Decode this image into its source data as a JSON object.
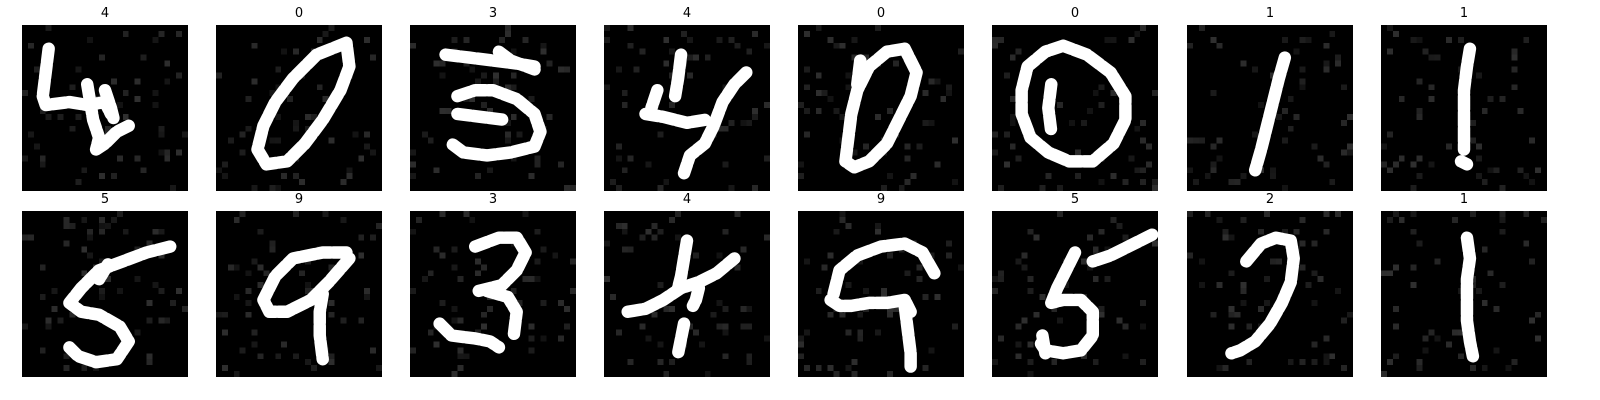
{
  "figure": {
    "background": "#ffffff",
    "image_background": "#000000",
    "stroke_color": "#ffffff"
  },
  "tiles": [
    {
      "label": "4",
      "glyph": "4-wide-icon"
    },
    {
      "label": "0",
      "glyph": "0-narrow-icon"
    },
    {
      "label": "3",
      "glyph": "3-flat-icon"
    },
    {
      "label": "4",
      "glyph": "4-open-icon"
    },
    {
      "label": "0",
      "glyph": "0-slanted-icon"
    },
    {
      "label": "0",
      "glyph": "0-round-icon"
    },
    {
      "label": "1",
      "glyph": "1-slanted-icon"
    },
    {
      "label": "1",
      "glyph": "1-straight-icon"
    },
    {
      "label": "5",
      "glyph": "5-icon"
    },
    {
      "label": "9",
      "glyph": "9-loop-icon"
    },
    {
      "label": "3",
      "glyph": "3-curved-icon"
    },
    {
      "label": "4",
      "glyph": "4-broken-icon"
    },
    {
      "label": "9",
      "glyph": "9-arched-icon"
    },
    {
      "label": "5",
      "glyph": "5-tall-icon"
    },
    {
      "label": "2",
      "glyph": "2-icon"
    },
    {
      "label": "1",
      "glyph": "1-thick-icon"
    }
  ]
}
